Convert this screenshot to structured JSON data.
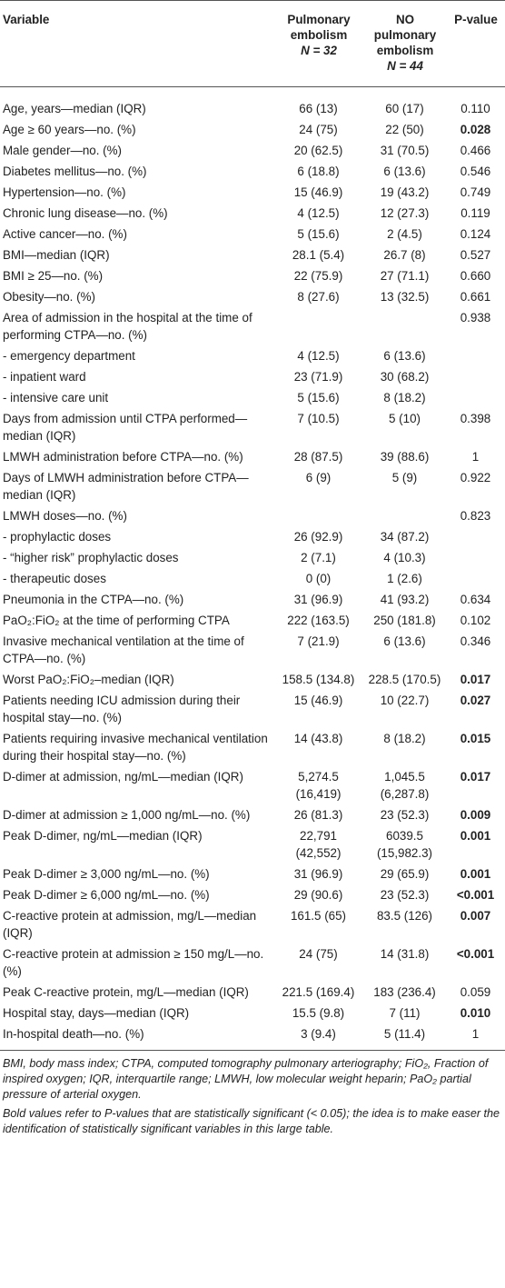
{
  "table": {
    "header": {
      "variable": "Variable",
      "pe": {
        "name": "Pulmonary embolism",
        "n": "N = 32"
      },
      "no_pe": {
        "name": "NO pulmonary embolism",
        "n": "N = 44"
      },
      "p": "P-value"
    },
    "rows": [
      {
        "variable": "Age, years—median (IQR)",
        "pe": "66 (13)",
        "no_pe": "60 (17)",
        "p": "0.110"
      },
      {
        "variable": "Age ≥ 60 years—no. (%)",
        "pe": "24 (75)",
        "no_pe": "22 (50)",
        "p": "0.028",
        "bold": true
      },
      {
        "variable": "Male gender—no. (%)",
        "pe": "20 (62.5)",
        "no_pe": "31 (70.5)",
        "p": "0.466"
      },
      {
        "variable": "Diabetes mellitus—no. (%)",
        "pe": "6 (18.8)",
        "no_pe": "6 (13.6)",
        "p": "0.546"
      },
      {
        "variable": "Hypertension—no. (%)",
        "pe": "15 (46.9)",
        "no_pe": "19 (43.2)",
        "p": "0.749"
      },
      {
        "variable": "Chronic lung disease—no. (%)",
        "pe": "4 (12.5)",
        "no_pe": "12 (27.3)",
        "p": "0.119"
      },
      {
        "variable": "Active cancer—no. (%)",
        "pe": "5 (15.6)",
        "no_pe": "2 (4.5)",
        "p": "0.124"
      },
      {
        "variable": "BMI—median (IQR)",
        "pe": "28.1 (5.4)",
        "no_pe": "26.7 (8)",
        "p": "0.527"
      },
      {
        "variable": "BMI ≥ 25—no. (%)",
        "pe": "22 (75.9)",
        "no_pe": "27 (71.1)",
        "p": "0.660"
      },
      {
        "variable": "Obesity—no. (%)",
        "pe": "8 (27.6)",
        "no_pe": "13 (32.5)",
        "p": "0.661"
      },
      {
        "variable": "Area of admission in the hospital at the time of performing CTPA—no. (%)",
        "p": "0.938"
      },
      {
        "variable": "- emergency department",
        "pe": "4 (12.5)",
        "no_pe": "6 (13.6)"
      },
      {
        "variable": "- inpatient ward",
        "pe": "23 (71.9)",
        "no_pe": "30 (68.2)"
      },
      {
        "variable": "- intensive care unit",
        "pe": "5 (15.6)",
        "no_pe": "8 (18.2)"
      },
      {
        "variable": "Days from admission until CTPA performed—median (IQR)",
        "pe": "7 (10.5)",
        "no_pe": "5 (10)",
        "p": "0.398"
      },
      {
        "variable": "LMWH administration before CTPA—no. (%)",
        "pe": "28 (87.5)",
        "no_pe": "39 (88.6)",
        "p": "1"
      },
      {
        "variable": "Days of LMWH administration before CTPA—median (IQR)",
        "pe": "6 (9)",
        "no_pe": "5 (9)",
        "p": "0.922"
      },
      {
        "variable": "LMWH doses—no. (%)",
        "p": "0.823"
      },
      {
        "variable": "- prophylactic doses",
        "pe": "26 (92.9)",
        "no_pe": "34 (87.2)"
      },
      {
        "variable": "- “higher risk” prophylactic doses",
        "pe": "2 (7.1)",
        "no_pe": "4 (10.3)"
      },
      {
        "variable": "- therapeutic doses",
        "pe": "0 (0)",
        "no_pe": "1 (2.6)"
      },
      {
        "variable": "Pneumonia in the CTPA—no. (%)",
        "pe": "31 (96.9)",
        "no_pe": "41 (93.2)",
        "p": "0.634"
      },
      {
        "variable": "PaO₂:FiO₂ at the time of performing CTPA",
        "pe": "222 (163.5)",
        "no_pe": "250 (181.8)",
        "p": "0.102"
      },
      {
        "variable": "Invasive mechanical ventilation at the time of CTPA—no. (%)",
        "pe": "7 (21.9)",
        "no_pe": "6 (13.6)",
        "p": "0.346"
      },
      {
        "variable": "Worst PaO₂:FiO₂–median (IQR)",
        "pe": "158.5 (134.8)",
        "no_pe": "228.5 (170.5)",
        "p": "0.017",
        "bold": true
      },
      {
        "variable": "Patients needing ICU admission during their hospital stay—no. (%)",
        "pe": "15 (46.9)",
        "no_pe": "10 (22.7)",
        "p": "0.027",
        "bold": true
      },
      {
        "variable": "Patients requiring invasive mechanical ventilation during their hospital stay—no. (%)",
        "pe": "14 (43.8)",
        "no_pe": "8 (18.2)",
        "p": "0.015",
        "bold": true
      },
      {
        "variable": "D-dimer at admission, ng/mL—median (IQR)",
        "pe": "5,274.5 (16,419)",
        "no_pe": "1,045.5 (6,287.8)",
        "p": "0.017",
        "bold": true
      },
      {
        "variable": "D-dimer at admission ≥ 1,000 ng/mL—no. (%)",
        "pe": "26 (81.3)",
        "no_pe": "23 (52.3)",
        "p": "0.009",
        "bold": true
      },
      {
        "variable": "Peak D-dimer, ng/mL—median (IQR)",
        "pe": "22,791 (42,552)",
        "no_pe": "6039.5 (15,982.3)",
        "p": "0.001",
        "bold": true
      },
      {
        "variable": "Peak D-dimer ≥ 3,000 ng/mL—no. (%)",
        "pe": "31 (96.9)",
        "no_pe": "29 (65.9)",
        "p": "0.001",
        "bold": true
      },
      {
        "variable": "Peak D-dimer ≥ 6,000 ng/mL—no. (%)",
        "pe": "29 (90.6)",
        "no_pe": "23 (52.3)",
        "p": "<0.001",
        "bold": true
      },
      {
        "variable": "C-reactive protein at admission, mg/L—median (IQR)",
        "pe": "161.5 (65)",
        "no_pe": "83.5 (126)",
        "p": "0.007",
        "bold": true
      },
      {
        "variable": "C-reactive protein at admission ≥ 150 mg/L—no. (%)",
        "pe": "24 (75)",
        "no_pe": "14 (31.8)",
        "p": "<0.001",
        "bold": true
      },
      {
        "variable": "Peak C-reactive protein, mg/L—median (IQR)",
        "pe": "221.5 (169.4)",
        "no_pe": "183 (236.4)",
        "p": "0.059"
      },
      {
        "variable": "Hospital stay, days—median (IQR)",
        "pe": "15.5 (9.8)",
        "no_pe": "7 (11)",
        "p": "0.010",
        "bold": true
      },
      {
        "variable": "In-hospital death—no. (%)",
        "pe": "3 (9.4)",
        "no_pe": "5 (11.4)",
        "p": "1"
      }
    ]
  },
  "footnotes": [
    "BMI, body mass index; CTPA, computed tomography pulmonary arteriography; FiO₂, Fraction of inspired oxygen; IQR, interquartile range; LMWH, low molecular weight heparin; PaO₂ partial pressure of arterial oxygen.",
    "Bold values refer to P-values that are statistically significant (< 0.05); the idea is to make easer the identification of statistically significant variables in this large table."
  ]
}
